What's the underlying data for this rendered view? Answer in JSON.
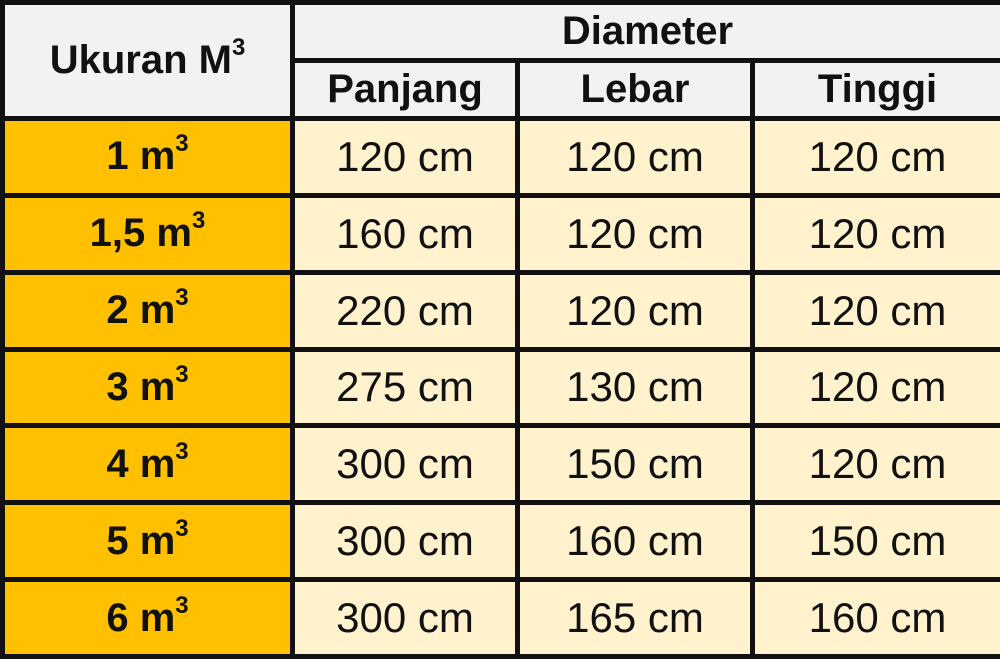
{
  "header": {
    "size_label": "Ukuran M",
    "size_sup": "3",
    "group_label": "Diameter",
    "columns": [
      "Panjang",
      "Lebar",
      "Tinggi"
    ]
  },
  "rows": [
    {
      "size": "1 m",
      "sup": "3",
      "panjang": "120 cm",
      "lebar": "120 cm",
      "tinggi": "120 cm"
    },
    {
      "size": "1,5 m",
      "sup": "3",
      "panjang": "160 cm",
      "lebar": "120 cm",
      "tinggi": "120 cm"
    },
    {
      "size": "2 m",
      "sup": "3",
      "panjang": "220 cm",
      "lebar": "120 cm",
      "tinggi": "120 cm"
    },
    {
      "size": "3 m",
      "sup": "3",
      "panjang": "275 cm",
      "lebar": "130 cm",
      "tinggi": "120 cm"
    },
    {
      "size": "4 m",
      "sup": "3",
      "panjang": "300 cm",
      "lebar": "150 cm",
      "tinggi": "120 cm"
    },
    {
      "size": "5 m",
      "sup": "3",
      "panjang": "300 cm",
      "lebar": "160 cm",
      "tinggi": "150 cm"
    },
    {
      "size": "6 m",
      "sup": "3",
      "panjang": "300 cm",
      "lebar": "165 cm",
      "tinggi": "160 cm"
    }
  ],
  "colors": {
    "header_bg": "#f2f2f2",
    "size_bg": "#ffc000",
    "value_bg": "#fff2cc",
    "border": "#111111"
  }
}
